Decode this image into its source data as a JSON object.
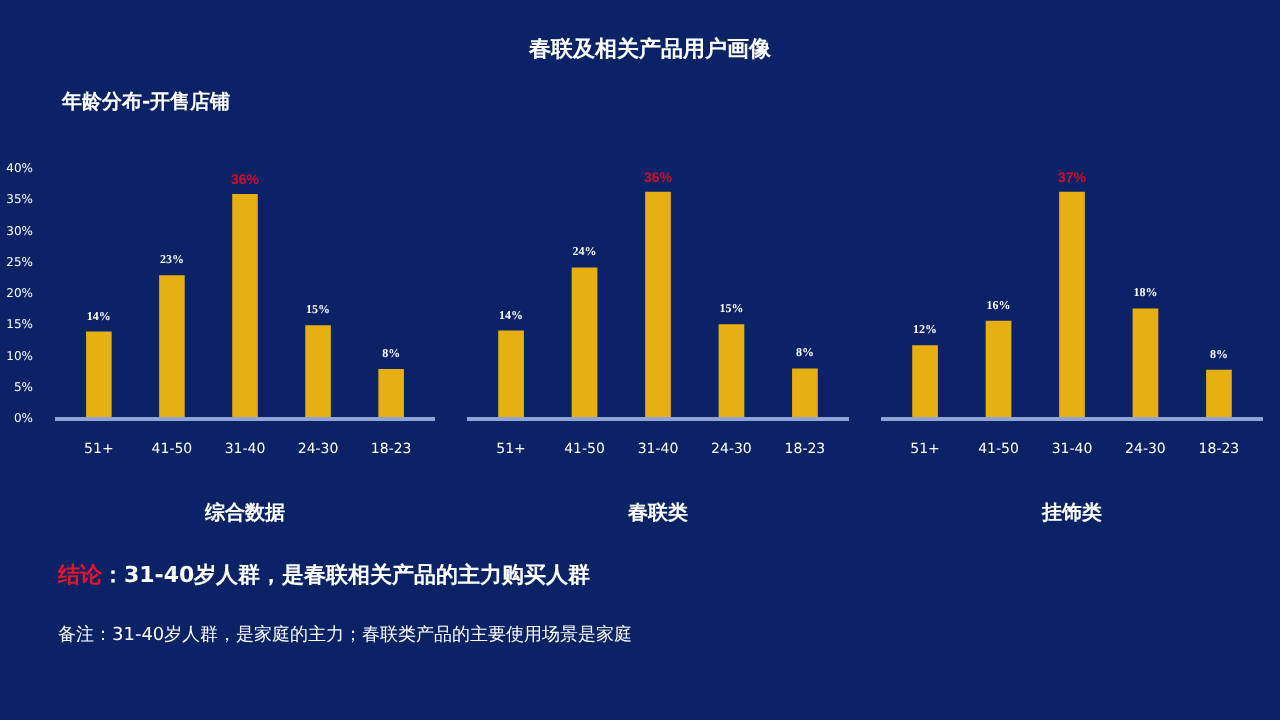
{
  "chart_data": [
    {
      "type": "bar",
      "subtitle": "年龄分布-开售店铺",
      "xlabel": "综合数据",
      "categories": [
        "51+",
        "41-50",
        "31-40",
        "24-30",
        "18-23"
      ],
      "values": [
        14,
        23,
        36,
        15,
        8
      ],
      "value_labels": [
        "14%",
        "23%",
        null,
        "15%",
        "8%"
      ],
      "annotations": [
        {
          "text": "36%",
          "x": "31-40",
          "y": 36
        }
      ],
      "color": "#e6b012",
      "ylim": [
        0,
        40
      ],
      "yticks": [
        {
          "value": 0,
          "label": "0%"
        },
        {
          "value": 5,
          "label": "5%"
        },
        {
          "value": 10,
          "label": "10%"
        },
        {
          "value": 15,
          "label": "15%"
        },
        {
          "value": 20,
          "label": "20%"
        },
        {
          "value": 25,
          "label": "25%"
        },
        {
          "value": 30,
          "label": "30%"
        },
        {
          "value": 35,
          "label": "35%"
        },
        {
          "value": 40,
          "label": "40%"
        }
      ],
      "grid": false
    },
    {
      "type": "bar",
      "title": "春联及相关产品用户画像",
      "xlabel": "春联类",
      "categories": [
        "51+",
        "41-50",
        "31-40",
        "24-30",
        "18-23"
      ],
      "values": [
        14,
        24,
        36,
        15,
        8
      ],
      "value_labels": [
        "14%",
        "24%",
        null,
        "15%",
        "8%"
      ],
      "annotations": [
        {
          "text": "36%",
          "x": "31-40",
          "y": 36
        }
      ],
      "color": "#e6b012",
      "tick_labels": "x",
      "grid": false
    },
    {
      "type": "bar",
      "xlabel": "挂饰类",
      "categories": [
        "51+",
        "41-50",
        "31-40",
        "24-30",
        "18-23"
      ],
      "values": [
        12,
        16,
        37,
        18,
        8
      ],
      "value_labels": [
        "12%",
        "16%",
        null,
        "18%",
        "8%"
      ],
      "annotations": [
        {
          "text": "37%",
          "x": "31-40",
          "y": 37
        },
        "结论：31-40岁人群，是春联相关产品的主力购买人群",
        "备注：31-40岁人群，是家庭的主力；春联类产品的主要使用场景是家庭"
      ],
      "color": "#e6b012",
      "tick_labels": "x",
      "grid": false
    }
  ]
}
